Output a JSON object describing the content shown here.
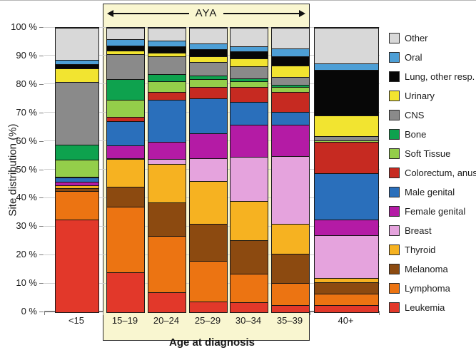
{
  "chart_data": {
    "type": "bar",
    "stacked": true,
    "percent": true,
    "xlabel": "Age at diagnosis",
    "ylabel": "Site distribution (%)",
    "ylim": [
      0,
      100
    ],
    "grid": true,
    "legend_position": "right",
    "y_ticks": [
      "100 %",
      "90 %",
      "80 %",
      "70 %",
      "60 %",
      "50 %",
      "40 %",
      "30 %",
      "20 %",
      "10 %",
      "0 %"
    ],
    "categories": [
      "<15",
      "15–19",
      "20–24",
      "25–29",
      "30–34",
      "35–39",
      "40+"
    ],
    "group_label": "AYA",
    "group_categories": [
      "15–19",
      "20–24",
      "25–29",
      "30–34",
      "35–39"
    ],
    "series_bottom_to_top": [
      {
        "name": "Leukemia",
        "color": "#e2382a",
        "values": [
          32.5,
          14.0,
          7.0,
          3.8,
          3.4,
          2.5,
          2.5
        ]
      },
      {
        "name": "Lymphoma",
        "color": "#ec7412",
        "values": [
          10.0,
          23.0,
          19.9,
          14.3,
          10.2,
          7.8,
          4.0
        ]
      },
      {
        "name": "Melanoma",
        "color": "#8c4a10",
        "values": [
          1.0,
          7.0,
          11.6,
          13.0,
          11.6,
          10.3,
          4.0
        ]
      },
      {
        "name": "Thyroid",
        "color": "#f6b221",
        "values": [
          1.1,
          9.9,
          13.7,
          14.9,
          14.0,
          10.5,
          1.5
        ]
      },
      {
        "name": "Breast",
        "color": "#e5a3dd",
        "values": [
          0.0,
          0.2,
          1.8,
          8.2,
          15.4,
          23.9,
          15.0
        ]
      },
      {
        "name": "Female genital",
        "color": "#b41ba5",
        "values": [
          1.3,
          4.6,
          5.9,
          8.8,
          11.3,
          10.9,
          5.5
        ]
      },
      {
        "name": "Male genital",
        "color": "#2a6fbb",
        "values": [
          1.5,
          8.4,
          14.7,
          12.3,
          8.0,
          4.6,
          16.5
        ]
      },
      {
        "name": "Colorectum, anus",
        "color": "#c62a21",
        "values": [
          0.3,
          1.6,
          2.9,
          3.9,
          5.3,
          6.9,
          11.0
        ]
      },
      {
        "name": "Soft Tissue",
        "color": "#94ce4a",
        "values": [
          6.0,
          5.9,
          3.6,
          2.7,
          2.0,
          1.7,
          0.3
        ]
      },
      {
        "name": "Bone",
        "color": "#0ea24e",
        "values": [
          5.3,
          7.3,
          2.6,
          1.2,
          1.1,
          0.9,
          0.2
        ]
      },
      {
        "name": "CNS",
        "color": "#8a8a8a",
        "values": [
          22.0,
          8.8,
          6.2,
          4.8,
          4.2,
          2.7,
          1.3
        ]
      },
      {
        "name": "Urinary",
        "color": "#f2e430",
        "values": [
          4.7,
          1.2,
          1.3,
          2.2,
          2.8,
          3.9,
          7.5
        ]
      },
      {
        "name": "Lung, other resp.",
        "color": "#070707",
        "values": [
          1.6,
          1.8,
          2.3,
          2.4,
          2.5,
          3.3,
          16.0
        ]
      },
      {
        "name": "Oral",
        "color": "#4d9fd6",
        "values": [
          1.4,
          2.3,
          2.1,
          2.0,
          1.8,
          2.9,
          2.2
        ]
      },
      {
        "name": "Other",
        "color": "#d8d8d8",
        "values": [
          11.3,
          4.0,
          4.4,
          5.5,
          6.4,
          7.2,
          12.5
        ]
      }
    ],
    "legend_top_to_bottom": [
      "Other",
      "Oral",
      "Lung, other resp.",
      "Urinary",
      "CNS",
      "Bone",
      "Soft Tissue",
      "Colorectum, anus",
      "Male genital",
      "Female genital",
      "Breast",
      "Thyroid",
      "Melanoma",
      "Lymphoma",
      "Leukemia"
    ]
  },
  "colors": {
    "background": "#ffffff",
    "aya_band": "#f9f6d0",
    "grid": "#cfcfcf",
    "axis": "#7d7d7d",
    "bar_border": "#1a1a1a",
    "text": "#1a1a1a"
  }
}
